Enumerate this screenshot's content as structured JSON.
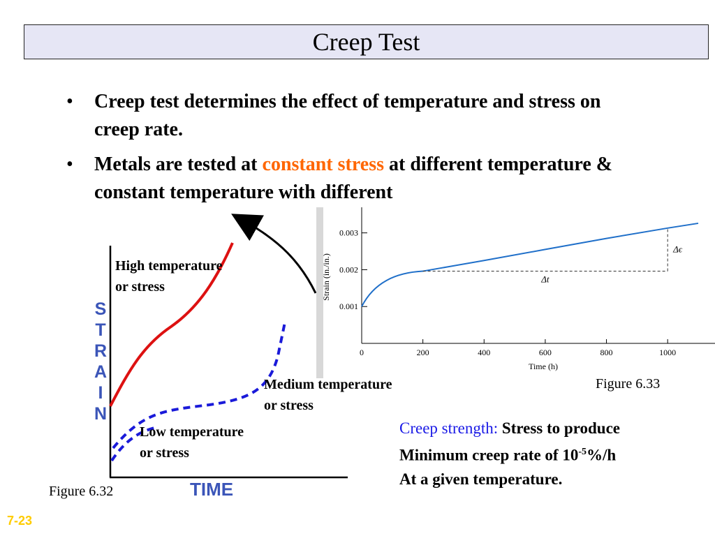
{
  "title": "Creep Test",
  "bullets": [
    {
      "symbol": "•",
      "text": "Creep test determines the effect of temperature and stress on creep rate."
    },
    {
      "symbol": "•",
      "text_before": "Metals are tested at ",
      "text_accent": "constant stress",
      "text_after": " at different temperature & constant temperature with different"
    }
  ],
  "figure_632": {
    "caption": "Figure 6.32",
    "y_axis_letters": [
      "S",
      "T",
      "R",
      "A",
      "I",
      "N"
    ],
    "x_axis_label": "TIME",
    "curves": [
      {
        "label_line1": "High temperature",
        "label_line2": "or stress",
        "color": "#dd1111",
        "style": "solid"
      },
      {
        "label_line1": "Medium temperature",
        "label_line2": "or stress",
        "color": "#1a1ad9",
        "style": "dashed"
      },
      {
        "label_line1": "Low temperature",
        "label_line2": "or stress",
        "color": "#1a1ad9",
        "style": "dashed"
      }
    ]
  },
  "figure_633": {
    "caption": "Figure 6.33",
    "ylabel": "Strain (in./in.)",
    "xlabel": "Time (h)",
    "y_ticks": [
      "0.001",
      "0.002",
      "0.003"
    ],
    "x_ticks": [
      "0",
      "200",
      "400",
      "600",
      "800",
      "1000"
    ],
    "delta_epsilon": "Δϵ",
    "delta_t": "Δt",
    "line_color": "#1f6fc9"
  },
  "chart_data": {
    "type": "line",
    "title": "",
    "xlabel": "Time (h)",
    "ylabel": "Strain (in./in.)",
    "xlim": [
      0,
      1100
    ],
    "ylim": [
      0,
      0.0036
    ],
    "series": [
      {
        "x": [
          0,
          50,
          100,
          150,
          200,
          400,
          600,
          800,
          1000,
          1100
        ],
        "y": [
          0.001,
          0.00145,
          0.00175,
          0.0019,
          0.00196,
          0.00225,
          0.00255,
          0.00285,
          0.00313,
          0.00326
        ]
      }
    ]
  },
  "creep_strength": {
    "label": "Creep strength:",
    "line1_rest": " Stress to produce",
    "line2_before": "Minimum creep rate of 10",
    "line2_sup": "-5",
    "line2_after": "%/h",
    "line3": "At a given temperature."
  },
  "slide_number": "7-23"
}
